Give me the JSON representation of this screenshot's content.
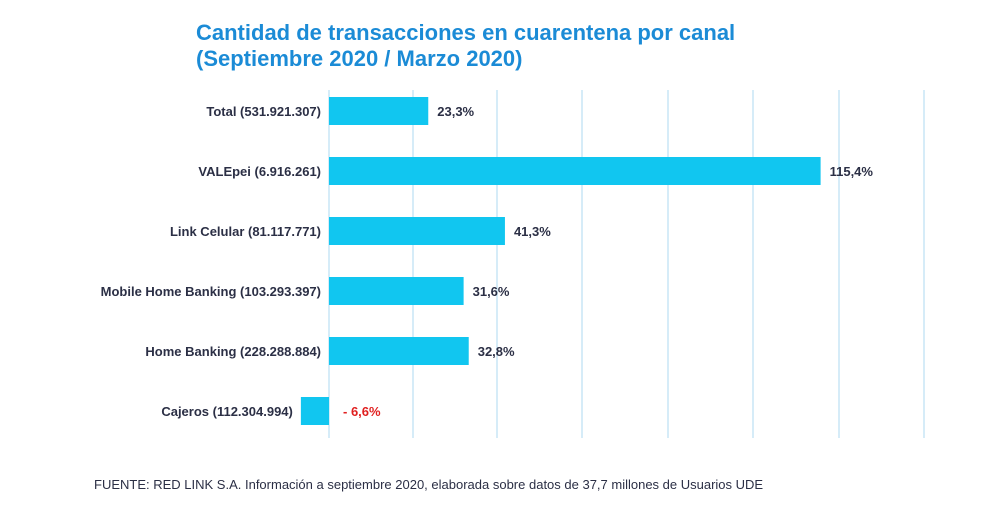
{
  "chart_data": {
    "type": "bar",
    "orientation": "horizontal",
    "title": "Cantidad de transacciones en cuarentena por canal",
    "subtitle": "(Septiembre 2020 / Marzo 2020)",
    "categories": [
      "Total (531.921.307)",
      "VALEpei (6.916.261)",
      "Link Celular (81.117.771)",
      "Mobile Home Banking (103.293.397)",
      "Home Banking (228.288.884)",
      "Cajeros (112.304.994)"
    ],
    "values": [
      23.3,
      115.4,
      41.3,
      31.6,
      32.8,
      -6.6
    ],
    "value_labels": [
      "23,3%",
      "115,4%",
      "41,3%",
      "31,6%",
      "32,8%",
      "- 6,6%"
    ],
    "unit": "%",
    "xlim": [
      -6.6,
      140
    ],
    "grid": true,
    "colors": {
      "bar": "#11c6f0",
      "title": "#1b8bd6",
      "text": "#2b2f45",
      "negative_label": "#e02020",
      "grid": "#d6ecf8"
    }
  },
  "source": "FUENTE: RED LINK S.A. Información a septiembre 2020, elaborada sobre datos de 37,7 millones de Usuarios UDE"
}
